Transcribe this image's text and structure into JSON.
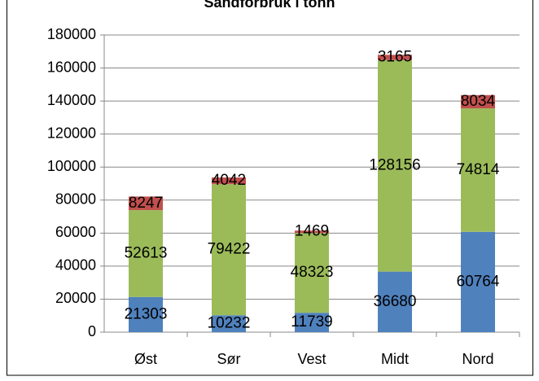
{
  "chart_data": {
    "type": "stacked_bar",
    "title": "Sandforbruk i tonn",
    "categories": [
      "Øst",
      "Sør",
      "Vest",
      "Midt",
      "Nord"
    ],
    "series": [
      {
        "color": "#4f81bd",
        "values": [
          21303,
          10232,
          11739,
          36680,
          60764
        ]
      },
      {
        "color": "#9bbb59",
        "values": [
          52613,
          79422,
          48323,
          128156,
          74814
        ]
      },
      {
        "color": "#c0504d",
        "values": [
          8247,
          4042,
          1469,
          3165,
          8034
        ]
      }
    ],
    "ylim": [
      0,
      180000
    ],
    "yticks": [
      0,
      20000,
      40000,
      60000,
      80000,
      100000,
      120000,
      140000,
      160000,
      180000
    ],
    "grid": true
  }
}
